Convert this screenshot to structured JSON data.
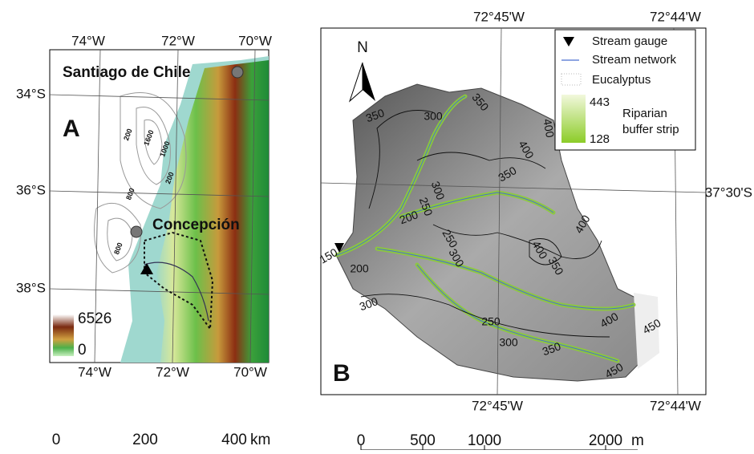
{
  "panel_a": {
    "label": "A",
    "top_ticks": [
      "74°W",
      "72°W",
      "70°W"
    ],
    "bottom_ticks": [
      "74°W",
      "72°W",
      "70°W"
    ],
    "left_ticks": [
      "34°S",
      "36°S",
      "38°S"
    ],
    "places": [
      "Santiago de Chile",
      "Concepción"
    ],
    "legend": [
      "6526",
      "0"
    ],
    "contour_labels": [
      "200",
      "1600",
      "1000",
      "200",
      "800",
      "800"
    ],
    "scale": [
      "0",
      "200",
      "400",
      "km"
    ]
  },
  "panel_b": {
    "label": "B",
    "north": "N",
    "top_ticks": [
      "72°45'W",
      "72°44'W"
    ],
    "bottom_ticks": [
      "72°45'W",
      "72°44'W"
    ],
    "right_ticks": [
      "37°30'S"
    ],
    "legend": {
      "gauge": "Stream gauge",
      "network": "Stream network",
      "eucalyptus": "Eucalyptus",
      "max": "443",
      "min": "128",
      "buffer_1": "Riparian",
      "buffer_2": "buffer strip"
    },
    "contour_labels": [
      "350",
      "300",
      "350",
      "400",
      "400",
      "350",
      "300",
      "250",
      "200",
      "250",
      "300",
      "400",
      "350",
      "400",
      "150",
      "200",
      "300",
      "250",
      "300",
      "350",
      "400",
      "450",
      "450"
    ],
    "scale": [
      "0",
      "500",
      "1000",
      "2000",
      "m"
    ]
  }
}
